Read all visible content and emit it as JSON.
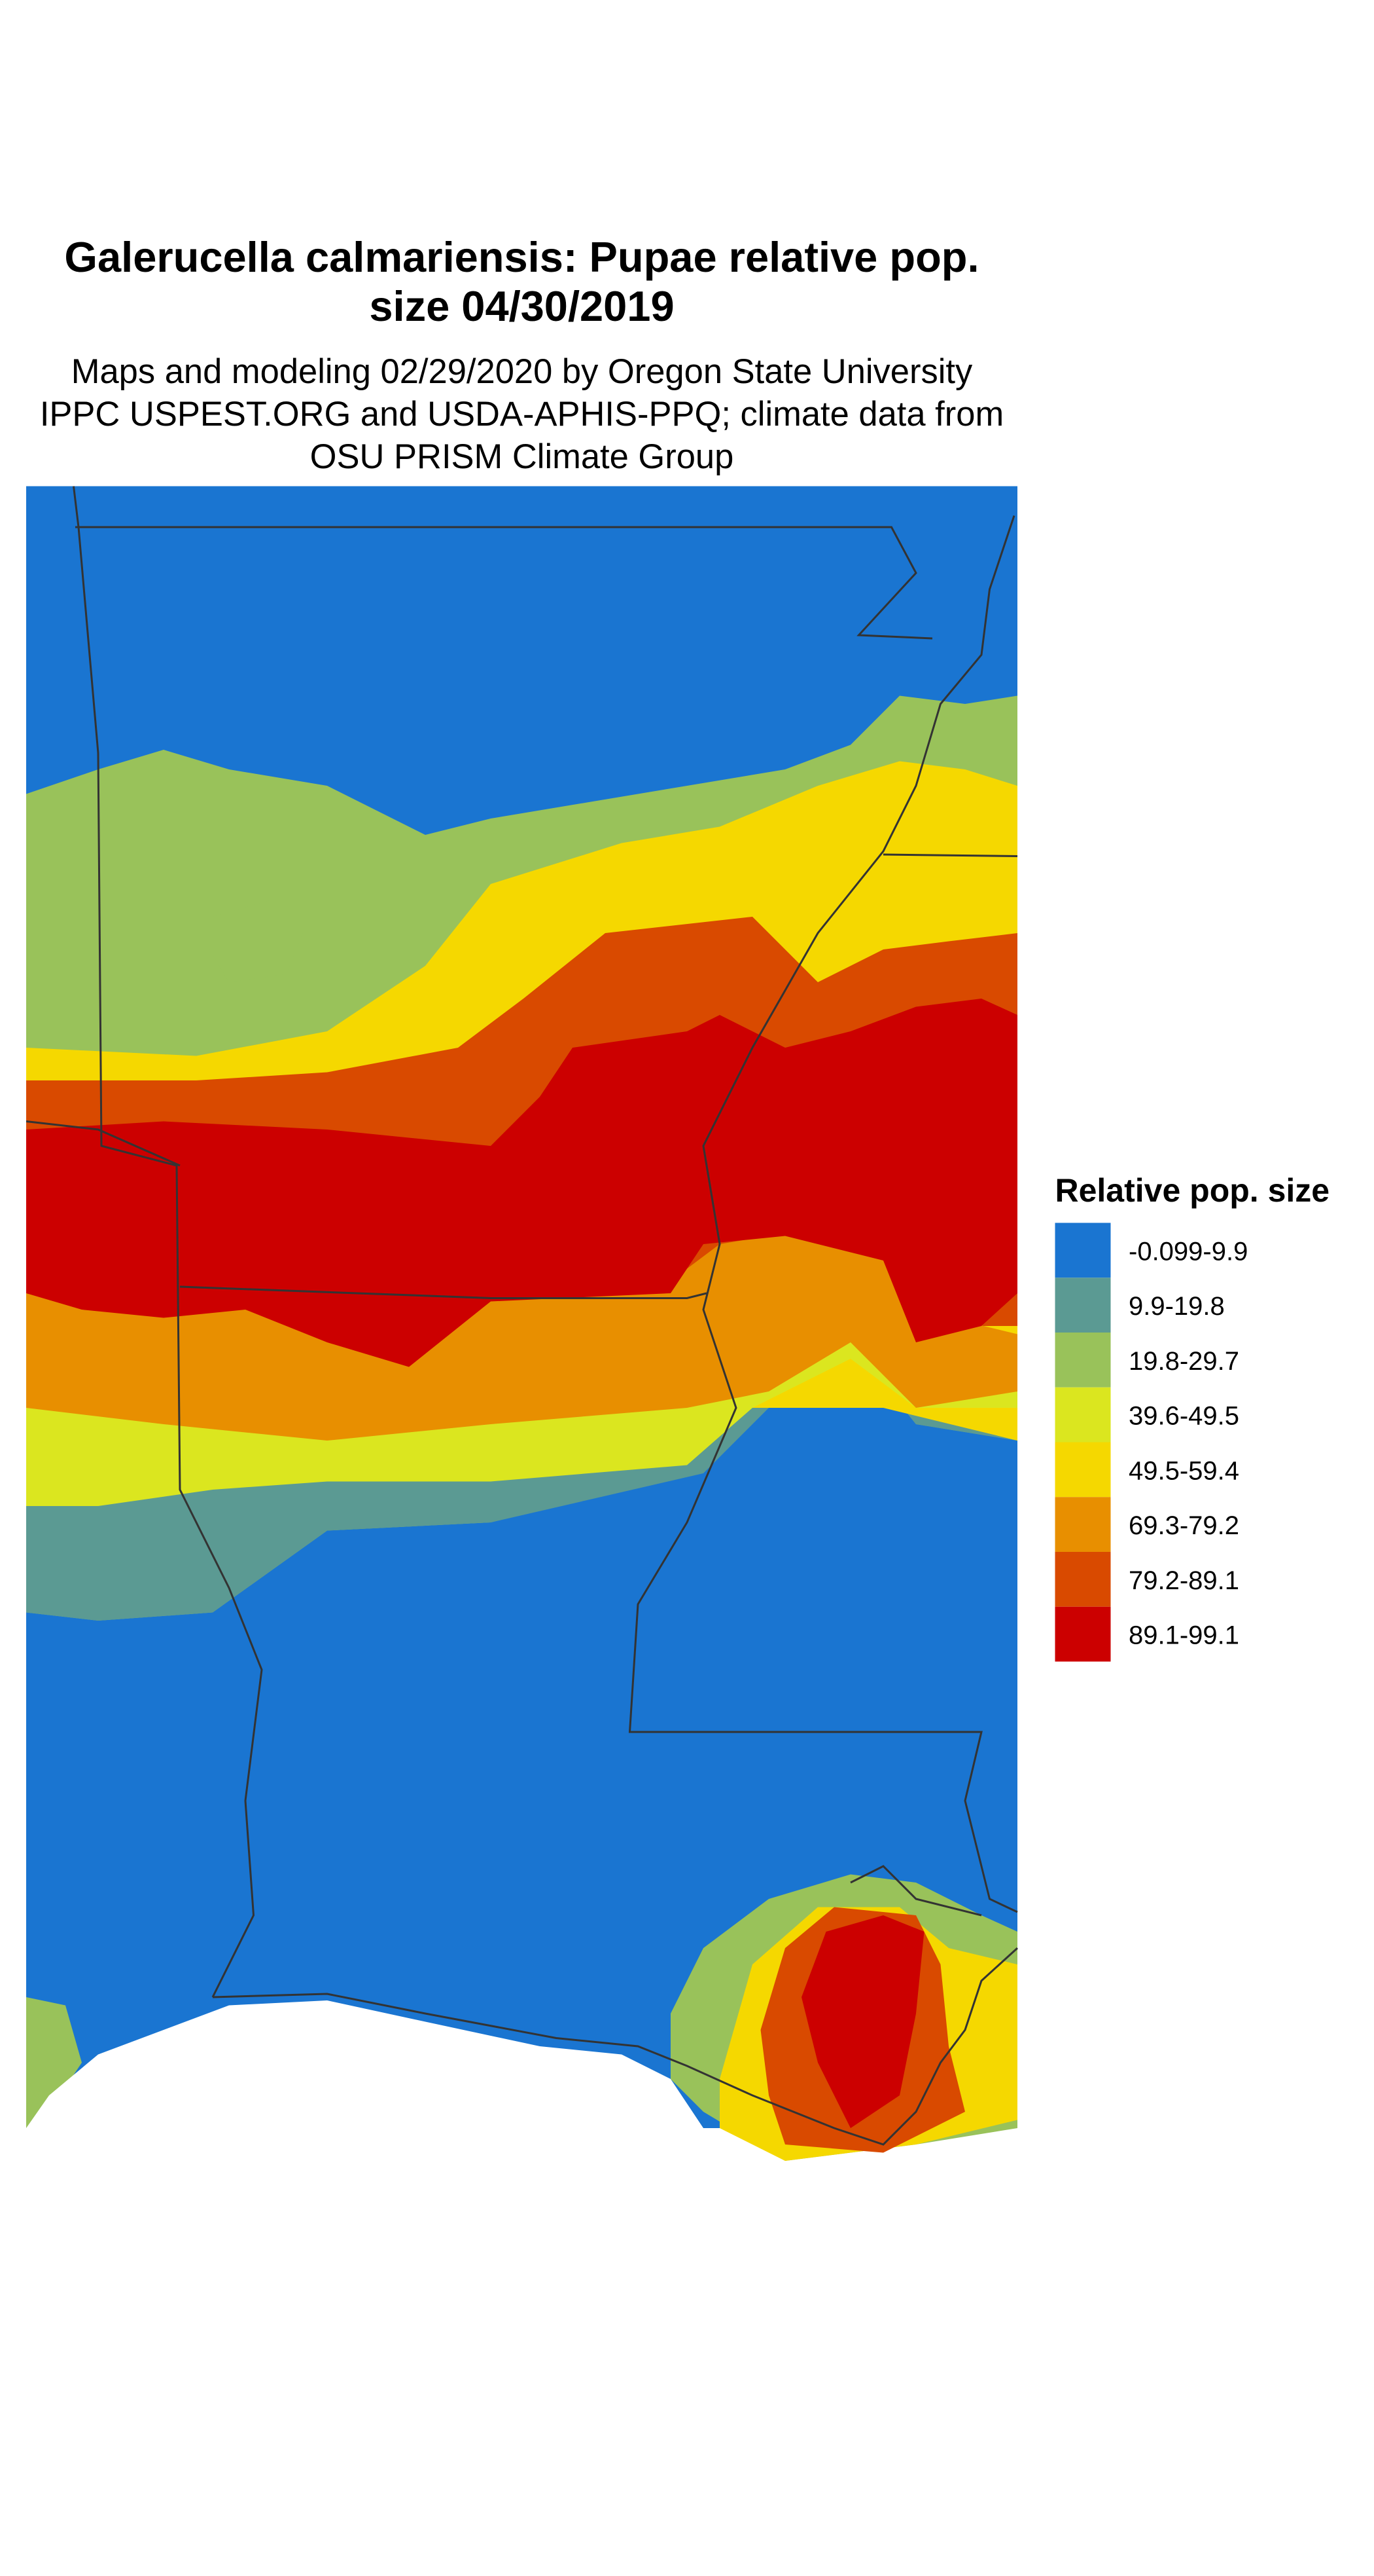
{
  "title_lines": [
    "Galerucella calmariensis: Pupae relative pop.",
    "size 04/30/2019"
  ],
  "subtitle_lines": [
    "Maps and modeling 02/29/2020 by Oregon State University",
    "IPPC USPEST.ORG and USDA-APHIS-PPQ; climate data from",
    "OSU PRISM Climate Group"
  ],
  "legend": {
    "title": "Relative pop. size",
    "items": [
      {
        "label": "-0.099-9.9",
        "color": "#1a75d1"
      },
      {
        "label": "9.9-19.8",
        "color": "#5b9a93"
      },
      {
        "label": "19.8-29.7",
        "color": "#99c25a"
      },
      {
        "label": "39.6-49.5",
        "color": "#dbe61f"
      },
      {
        "label": "49.5-59.4",
        "color": "#f5d800"
      },
      {
        "label": "69.3-79.2",
        "color": "#e88f00"
      },
      {
        "label": "79.2-89.1",
        "color": "#d94a00"
      },
      {
        "label": "89.1-99.1",
        "color": "#cc0000"
      }
    ]
  }
}
